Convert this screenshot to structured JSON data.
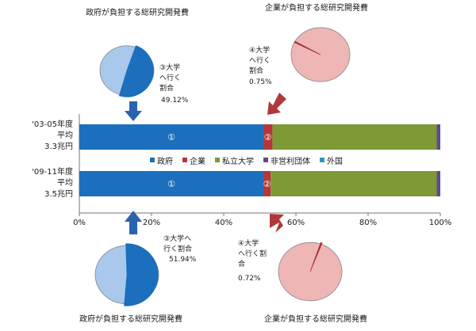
{
  "chart_data": {
    "type": "bar",
    "stacked": true,
    "orientation": "horizontal",
    "categories": [
      "'03-05年度\n平均\n3.3兆円",
      "'09-11年度\n平均\n3.5兆円"
    ],
    "series": [
      {
        "name": "政府",
        "color": "#1b6fbc",
        "values": [
          51,
          51
        ],
        "marker": "①"
      },
      {
        "name": "企業",
        "color": "#b5363b",
        "values": [
          2.5,
          2
        ],
        "marker": "②"
      },
      {
        "name": "私立大学",
        "color": "#7d9a36",
        "values": [
          45.5,
          46
        ],
        "marker": ""
      },
      {
        "name": "非営利団体",
        "color": "#5e4a8a",
        "values": [
          1,
          1
        ],
        "marker": ""
      },
      {
        "name": "外国",
        "color": "#2f9bc0",
        "values": [
          0,
          0
        ],
        "marker": ""
      }
    ],
    "x_ticks": [
      "0%",
      "20%",
      "40%",
      "60%",
      "80%",
      "100%"
    ],
    "xlim": [
      0,
      100
    ],
    "legend": "center"
  },
  "pies": [
    {
      "title": "政府が負担する総研究開発費",
      "label": "③大学\nへ行く\n割合",
      "value_text": "49.12%",
      "share": 49.12,
      "share_color": "#1b6fbc",
      "rest_color": "#a9c8ec"
    },
    {
      "title": "企業が負担する総研究開発費",
      "label": "④大学\nへ行く\n割合",
      "value_text": "0.75%",
      "share": 0.75,
      "share_color": "#a8323a",
      "rest_color": "#efb6b6"
    },
    {
      "title": "政府が負担する総研究開発費",
      "label": "③大学へ\n行く割合",
      "value_text": "51.94%",
      "share": 51.94,
      "share_color": "#1b6fbc",
      "rest_color": "#a9c8ec"
    },
    {
      "title": "企業が負担する総研究開発費",
      "label": "④大学\nへ行く割\n合",
      "value_text": "0.72%",
      "share": 0.72,
      "share_color": "#a8323a",
      "rest_color": "#efb6b6"
    }
  ]
}
